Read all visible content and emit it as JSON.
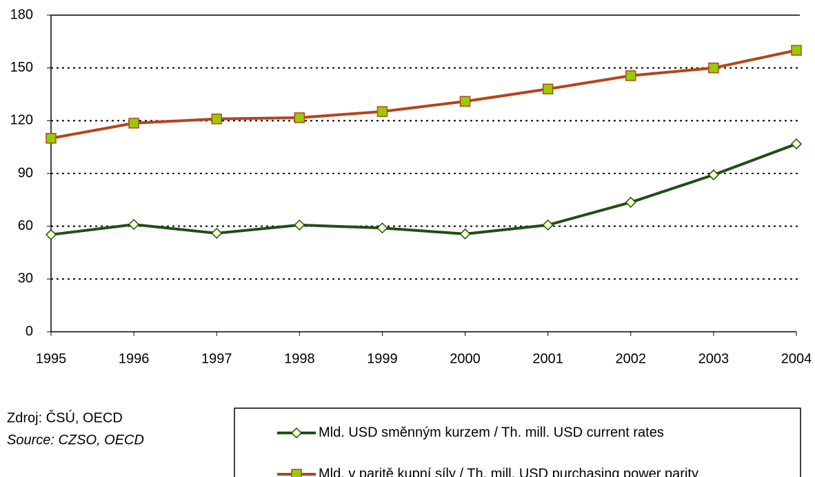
{
  "chart_data": {
    "type": "line",
    "categories": [
      "1995",
      "1996",
      "1997",
      "1998",
      "1999",
      "2000",
      "2001",
      "2002",
      "2003",
      "2004"
    ],
    "series": [
      {
        "name": "Mld. USD směnným kurzem / Th. mill. USD current rates",
        "color": "#1e4f16",
        "marker": "diamond",
        "marker_color": "#ffffcc",
        "values": [
          55.2,
          61,
          56,
          60.7,
          59,
          55.6,
          60.7,
          73.6,
          89.2,
          106.8
        ]
      },
      {
        "name": "Mld. v paritě kupní síly / Th. mill. USD purchasing power parity",
        "color": "#b5441a",
        "marker": "square",
        "marker_color": "#99cc00",
        "values": [
          110,
          118.6,
          121,
          121.7,
          125.2,
          131,
          138,
          145.6,
          150,
          160
        ]
      }
    ],
    "ylim": [
      0,
      180
    ],
    "yticks": [
      0,
      30,
      60,
      90,
      120,
      150,
      180
    ],
    "grid": true,
    "legend": "bottom",
    "notes": [
      "Zdroj:  ČSÚ, OECD",
      "Source: CZSO, OECD"
    ]
  }
}
